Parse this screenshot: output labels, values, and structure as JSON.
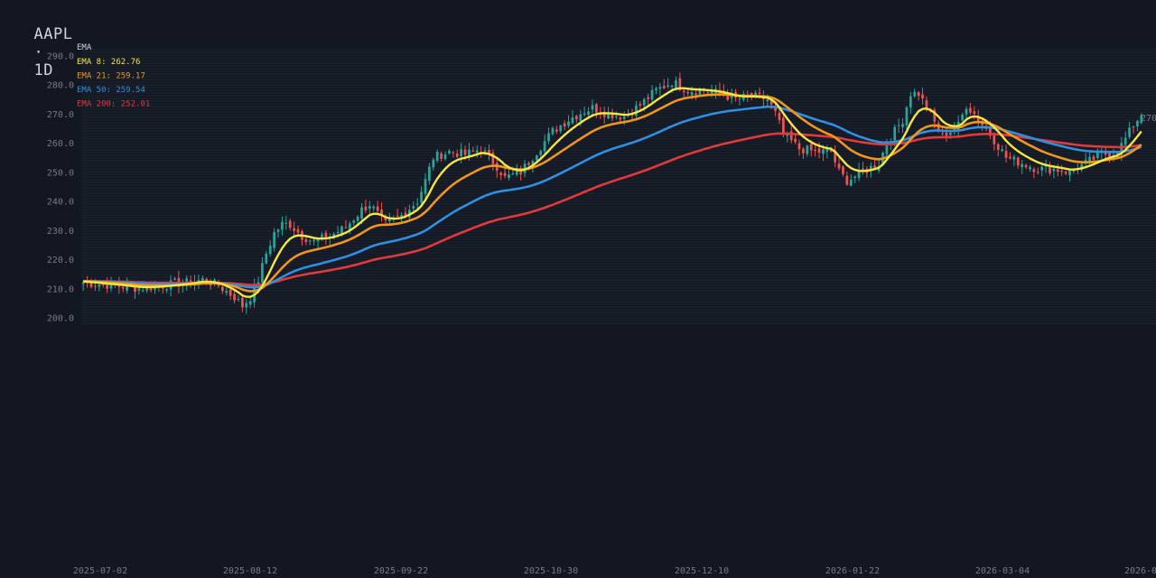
{
  "header": {
    "symbol": "AAPL",
    "separator": "·",
    "interval": "1D"
  },
  "colors": {
    "background": "#131722",
    "grid": "#1e2433",
    "up": "#26a69a",
    "down": "#ef5350",
    "ema8": "#f5e642",
    "ema21": "#f0961e",
    "ema50": "#2f8fe0",
    "ema200": "#e03a3a"
  },
  "chart_data": {
    "type": "candlestick",
    "title": "AAPL · 1D",
    "ylim": [
      198,
      292
    ],
    "y_ticks": [
      "290.0",
      "280.0",
      "270.0",
      "260.0",
      "250.0",
      "240.0",
      "230.0",
      "220.0",
      "210.0",
      "200.0"
    ],
    "x_ticks": [
      "2025-07-02",
      "2025-08-12",
      "2025-09-22",
      "2025-10-30",
      "2025-12-10",
      "2026-01-22",
      "2026-03-04",
      "2026-0"
    ],
    "last_price_label": "270",
    "legend": {
      "title": "EMA",
      "entries": [
        {
          "name": "EMA 8",
          "value": "262.76",
          "color": "#f5e642"
        },
        {
          "name": "EMA 21",
          "value": "259.17",
          "color": "#f0961e"
        },
        {
          "name": "EMA 50",
          "value": "259.54",
          "color": "#2f8fe0"
        },
        {
          "name": "EMA 200",
          "value": "252.01",
          "color": "#e03a3a"
        }
      ]
    },
    "anchors": [
      [
        0,
        212
      ],
      [
        8,
        211
      ],
      [
        14,
        210
      ],
      [
        20,
        211
      ],
      [
        26,
        212
      ],
      [
        30,
        213
      ],
      [
        34,
        211
      ],
      [
        38,
        207
      ],
      [
        40,
        204
      ],
      [
        42,
        207
      ],
      [
        44,
        213
      ],
      [
        46,
        222
      ],
      [
        48,
        229
      ],
      [
        50,
        232
      ],
      [
        52,
        232
      ],
      [
        55,
        228
      ],
      [
        58,
        226
      ],
      [
        62,
        228
      ],
      [
        66,
        231
      ],
      [
        70,
        237
      ],
      [
        72,
        239
      ],
      [
        76,
        232
      ],
      [
        80,
        235
      ],
      [
        84,
        240
      ],
      [
        86,
        247
      ],
      [
        88,
        255
      ],
      [
        92,
        257
      ],
      [
        96,
        256
      ],
      [
        100,
        258
      ],
      [
        104,
        252
      ],
      [
        106,
        248
      ],
      [
        110,
        250
      ],
      [
        114,
        257
      ],
      [
        118,
        264
      ],
      [
        122,
        268
      ],
      [
        126,
        271
      ],
      [
        128,
        272
      ],
      [
        132,
        270
      ],
      [
        136,
        269
      ],
      [
        140,
        273
      ],
      [
        144,
        278
      ],
      [
        148,
        281
      ],
      [
        152,
        278
      ],
      [
        156,
        278
      ],
      [
        160,
        277
      ],
      [
        164,
        275
      ],
      [
        168,
        276
      ],
      [
        172,
        275
      ],
      [
        174,
        270
      ],
      [
        176,
        263
      ],
      [
        180,
        258
      ],
      [
        184,
        257
      ],
      [
        188,
        257
      ],
      [
        190,
        250
      ],
      [
        192,
        247
      ],
      [
        196,
        250
      ],
      [
        200,
        253
      ],
      [
        202,
        260
      ],
      [
        206,
        268
      ],
      [
        208,
        277
      ],
      [
        210,
        277
      ],
      [
        212,
        272
      ],
      [
        214,
        267
      ],
      [
        216,
        262
      ],
      [
        220,
        266
      ],
      [
        222,
        273
      ],
      [
        224,
        270
      ],
      [
        228,
        263
      ],
      [
        232,
        255
      ],
      [
        236,
        253
      ],
      [
        240,
        251
      ],
      [
        244,
        251
      ],
      [
        248,
        250
      ],
      [
        252,
        253
      ],
      [
        256,
        256
      ],
      [
        260,
        257
      ],
      [
        264,
        266
      ],
      [
        266,
        270
      ]
    ],
    "ema_periods": [
      8,
      21,
      50,
      200
    ]
  }
}
